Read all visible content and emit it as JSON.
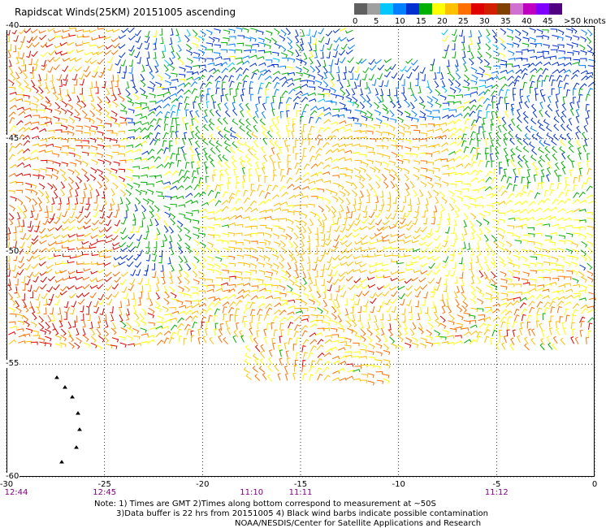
{
  "title": "Rapidscat Winds(25KM) 20151005 ascending",
  "legend": {
    "colors": [
      "#606060",
      "#a0a0a0",
      "#00c8ff",
      "#0080ff",
      "#0030d0",
      "#00b000",
      "#ffff00",
      "#ffc000",
      "#ff7000",
      "#e00000",
      "#d02000",
      "#804000",
      "#d070d0",
      "#c000c0",
      "#8000ff",
      "#500080"
    ],
    "labels": [
      "0",
      "5",
      "10",
      "15",
      "20",
      "25",
      "30",
      "35",
      "40",
      "45",
      ">50 knots"
    ],
    "label_steps": [
      0,
      1,
      2,
      3,
      4,
      5,
      6,
      7,
      8,
      9,
      10
    ]
  },
  "axes": {
    "lon_ticks": [
      "-30",
      "-25",
      "-20",
      "-15",
      "-10",
      "-5",
      "0"
    ],
    "lat_ticks": [
      "-40",
      "-45",
      "-50",
      "-55",
      "-60"
    ],
    "lon_range": [
      -30,
      0
    ],
    "lat_range": [
      -40,
      -60
    ],
    "grid": "dotted"
  },
  "times": [
    {
      "label": "12:44",
      "lon": -30
    },
    {
      "label": "12:45",
      "lon": -25
    },
    {
      "label": "11:10",
      "lon": -17.5
    },
    {
      "label": "11:11",
      "lon": -15
    },
    {
      "label": "11:12",
      "lon": -5
    }
  ],
  "notes": [
    "Note: 1) Times are GMT 2)Times along bottom correspond to measurement at ~50S",
    "3)Data buffer is 22 hrs from 20151005 4) Black wind barbs indicate possible contamination",
    "NOAA/NESDIS/Center for Satellite Applications and Research"
  ]
}
